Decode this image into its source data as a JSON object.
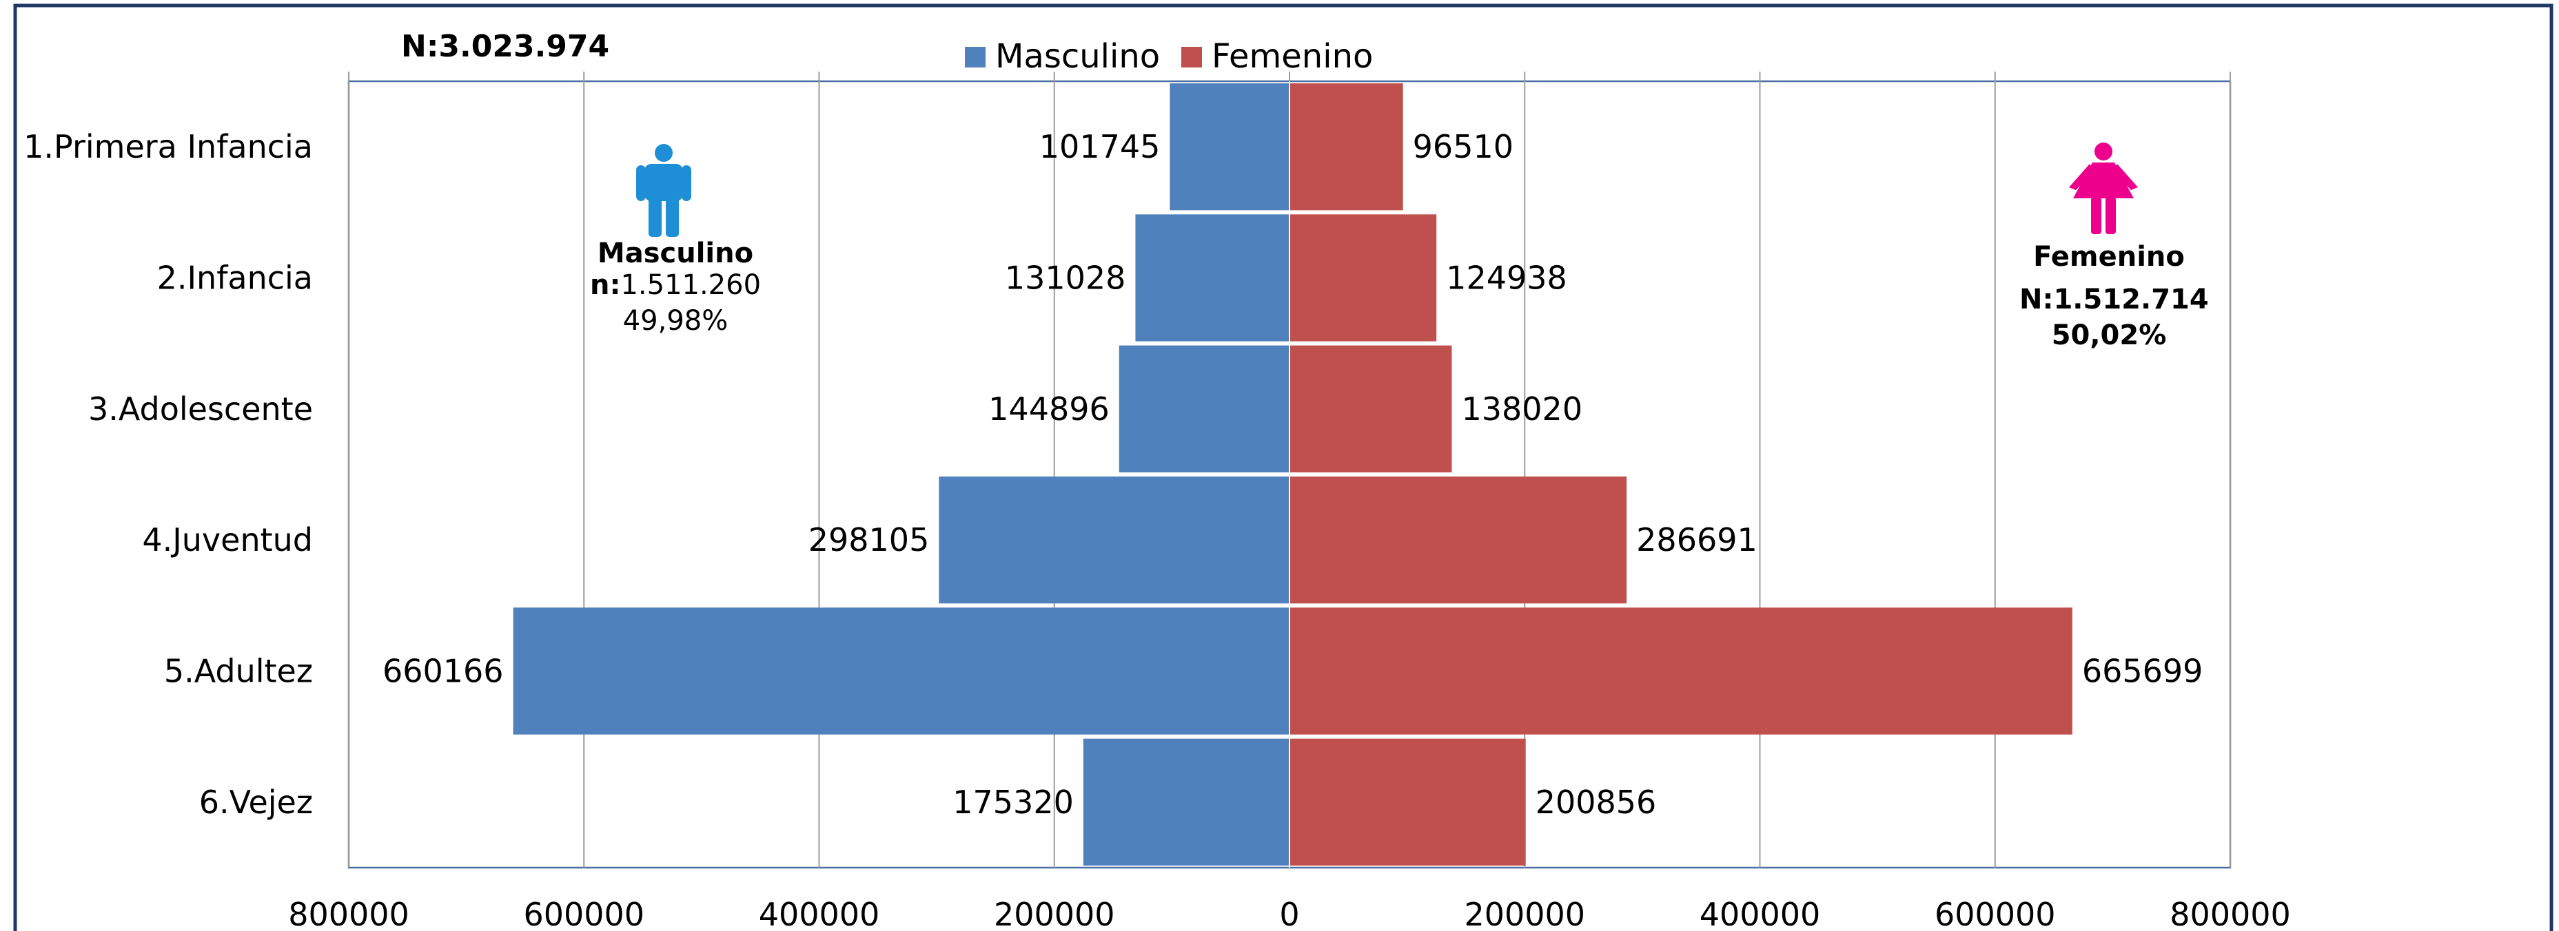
{
  "chart_data": {
    "type": "bar",
    "subtype": "population-pyramid",
    "total_label": "N:3.023.974",
    "categories": [
      "1.Primera Infancia",
      "2.Infancia",
      "3.Adolescente",
      "4.Juventud",
      "5.Adultez",
      "6.Vejez"
    ],
    "series": [
      {
        "name": "Masculino",
        "color": "#4F81BD",
        "side": "left",
        "values": [
          101745,
          131028,
          144896,
          298105,
          660166,
          175320
        ]
      },
      {
        "name": "Femenino",
        "color": "#C0504D",
        "side": "right",
        "values": [
          96510,
          124938,
          138020,
          286691,
          665699,
          200856
        ]
      }
    ],
    "x_range": [
      -800000,
      800000
    ],
    "x_tick_labels": [
      "800000",
      "600000",
      "400000",
      "200000",
      "0",
      "200000",
      "400000",
      "600000",
      "800000"
    ],
    "grid": "vertical",
    "legend": "top-center"
  },
  "masculino_box": {
    "icon": "male-person-icon",
    "icon_color": "#1E8ED6",
    "title": "Masculino",
    "n_prefix": "n:",
    "n_value": "1.511.260",
    "percent": "49,98%"
  },
  "femenino_box": {
    "icon": "female-person-icon",
    "icon_color": "#EC008C",
    "title": "Femenino",
    "n_label": "N:1.512.714",
    "percent": "50,02%"
  }
}
